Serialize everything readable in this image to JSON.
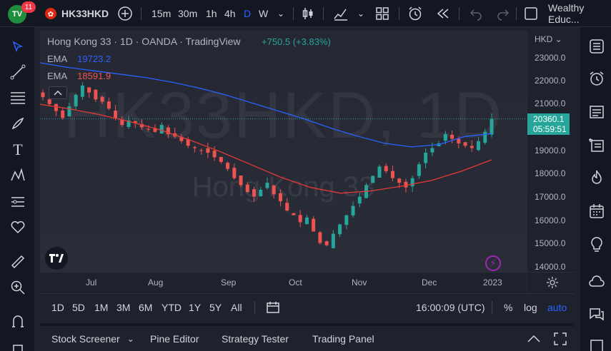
{
  "topbar": {
    "logo_text": "TV",
    "notification_count": "11",
    "symbol": "HK33HKD",
    "intervals": [
      "15m",
      "30m",
      "1h",
      "4h",
      "D",
      "W"
    ],
    "active_interval": "D",
    "account_name": "Wealthy Educ..."
  },
  "legend": {
    "title": "Hong Kong 33 · 1D · OANDA · TradingView",
    "change": "+750.5 (+3.83%)",
    "ema1_label": "EMA",
    "ema1_value": "19723.2",
    "ema2_label": "EMA",
    "ema2_value": "18591.9"
  },
  "watermark": {
    "symbol": "HK33HKD, 1D",
    "name": "Hong Kong 33"
  },
  "price_axis": {
    "currency": "HKD",
    "labels": [
      "23000.0",
      "22000.0",
      "21000.0",
      "19000.0",
      "18000.0",
      "17000.0",
      "16000.0",
      "15000.0",
      "14000.0"
    ],
    "current_price": "20360.1",
    "countdown": "05:59:51"
  },
  "time_axis": {
    "labels": [
      "Jul",
      "Aug",
      "Sep",
      "Oct",
      "Nov",
      "Dec",
      "2023"
    ]
  },
  "range_bar": {
    "ranges": [
      "1D",
      "5D",
      "1M",
      "3M",
      "6M",
      "YTD",
      "1Y",
      "5Y",
      "All"
    ],
    "clock": "16:00:09 (UTC)",
    "percent": "%",
    "log": "log",
    "auto": "auto"
  },
  "bottom_bar": {
    "tabs": [
      "Stock Screener",
      "Pine Editor",
      "Strategy Tester",
      "Trading Panel"
    ]
  },
  "colors": {
    "up": "#26a69a",
    "down": "#ef5350",
    "ema_fast": "#2962ff",
    "ema_slow": "#e53935",
    "accent": "#2962ff"
  },
  "chart_data": {
    "type": "candlestick",
    "symbol": "HK33HKD",
    "ylim": [
      14000,
      23500
    ],
    "x_labels": [
      "Jul",
      "Aug",
      "Sep",
      "Oct",
      "Nov",
      "Dec",
      "2023"
    ],
    "close_approx": [
      21300,
      21000,
      20700,
      20400,
      20900,
      21400,
      21800,
      21500,
      21200,
      21100,
      20800,
      20400,
      20100,
      20300,
      20200,
      20000,
      19900,
      19800,
      20100,
      19700,
      19600,
      19400,
      19200,
      19100,
      19000,
      18900,
      18700,
      18500,
      18200,
      17800,
      17500,
      17200,
      17000,
      17300,
      17600,
      17100,
      16800,
      16400,
      16200,
      15900,
      16100,
      15500,
      15000,
      14900,
      15400,
      15800,
      16200,
      16600,
      17000,
      17500,
      17900,
      18300,
      18100,
      17800,
      17600,
      17400,
      17800,
      18400,
      18900,
      19100,
      19300,
      19700,
      19500,
      19300,
      19200,
      19100,
      19400,
      19800,
      20360.1
    ],
    "ema_fast_values": [
      22800,
      22600,
      22450,
      22300,
      22150,
      21950,
      21700,
      21400,
      21050,
      20700,
      20350,
      19950,
      19600,
      19300,
      19150,
      19250,
      19600,
      19723.2
    ],
    "ema_slow_values": [
      21000,
      20800,
      20550,
      20250,
      19900,
      19450,
      18950,
      18400,
      17850,
      17400,
      17150,
      17250,
      17450,
      17700,
      18100,
      18591.9
    ],
    "last_price": 20360.1
  }
}
